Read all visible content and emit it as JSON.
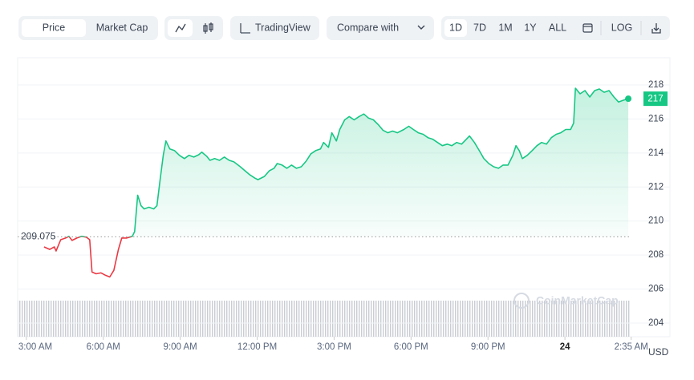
{
  "toolbar": {
    "view_tabs": [
      "Price",
      "Market Cap"
    ],
    "tradingview": "TradingView",
    "compare": "Compare with",
    "ranges": [
      "1D",
      "7D",
      "1M",
      "1Y",
      "ALL"
    ],
    "log": "LOG"
  },
  "chart_data": {
    "type": "line",
    "x": [
      3.69,
      3.91,
      4.09,
      4.16,
      4.34,
      4.53,
      4.66,
      4.78,
      4.97,
      5.16,
      5.34,
      5.47,
      5.56,
      5.72,
      5.91,
      6.09,
      6.25,
      6.41,
      6.59,
      6.72,
      6.91,
      7.13,
      7.22,
      7.34,
      7.47,
      7.59,
      7.78,
      7.97,
      8.09,
      8.22,
      8.34,
      8.44,
      8.59,
      8.78,
      8.97,
      9.16,
      9.34,
      9.53,
      9.72,
      9.84,
      10.03,
      10.16,
      10.34,
      10.53,
      10.72,
      10.91,
      11.09,
      11.34,
      11.53,
      11.72,
      11.91,
      12.03,
      12.28,
      12.47,
      12.66,
      12.78,
      12.97,
      13.16,
      13.34,
      13.53,
      13.72,
      13.91,
      14.09,
      14.28,
      14.47,
      14.59,
      14.78,
      14.91,
      15.09,
      15.22,
      15.41,
      15.59,
      15.78,
      15.97,
      16.16,
      16.34,
      16.53,
      16.72,
      16.91,
      17.09,
      17.28,
      17.47,
      17.72,
      17.91,
      18.09,
      18.28,
      18.47,
      18.66,
      18.84,
      19.03,
      19.22,
      19.41,
      19.59,
      19.78,
      19.97,
      20.16,
      20.28,
      20.47,
      20.66,
      20.84,
      21.03,
      21.22,
      21.41,
      21.59,
      21.78,
      21.97,
      22.09,
      22.22,
      22.34,
      22.53,
      22.72,
      22.91,
      23.09,
      23.28,
      23.47,
      23.66,
      23.84,
      24.03,
      24.22,
      24.34,
      24.41,
      24.59,
      24.78,
      24.97,
      25.16,
      25.34,
      25.53,
      25.72,
      25.91,
      26.09,
      26.28,
      26.47
    ],
    "series": [
      {
        "name": "Price",
        "values": [
          208.48,
          208.33,
          208.48,
          208.24,
          208.9,
          209.0,
          209.1,
          208.86,
          209.0,
          209.1,
          209.05,
          208.9,
          207.0,
          206.9,
          206.95,
          206.81,
          206.71,
          207.1,
          208.33,
          209.0,
          209.0,
          209.1,
          209.38,
          211.52,
          210.9,
          210.71,
          210.81,
          210.71,
          210.9,
          212.48,
          213.9,
          214.71,
          214.24,
          214.14,
          213.86,
          213.67,
          213.86,
          213.76,
          213.9,
          214.05,
          213.81,
          213.57,
          213.67,
          213.57,
          213.76,
          213.57,
          213.48,
          213.19,
          212.95,
          212.71,
          212.52,
          212.43,
          212.62,
          212.95,
          213.1,
          213.38,
          213.29,
          213.1,
          213.29,
          213.1,
          213.19,
          213.52,
          213.95,
          214.14,
          214.24,
          214.62,
          214.33,
          215.19,
          214.71,
          215.38,
          215.95,
          216.14,
          215.95,
          216.14,
          216.29,
          216.05,
          215.95,
          215.67,
          215.33,
          215.19,
          215.29,
          215.19,
          215.38,
          215.57,
          215.38,
          215.19,
          215.1,
          214.9,
          214.81,
          214.62,
          214.43,
          214.52,
          214.43,
          214.62,
          214.52,
          214.81,
          215.0,
          214.62,
          214.14,
          213.67,
          213.38,
          213.19,
          213.1,
          213.29,
          213.29,
          213.86,
          214.43,
          214.14,
          213.67,
          213.86,
          214.14,
          214.43,
          214.62,
          214.52,
          214.9,
          215.1,
          215.19,
          215.38,
          215.38,
          215.76,
          217.81,
          217.48,
          217.67,
          217.29,
          217.67,
          217.76,
          217.57,
          217.67,
          217.29,
          217.0,
          217.1,
          217.19
        ]
      }
    ],
    "up_color": "#16c784",
    "down_color": "#ea3943",
    "baseline": 209.075,
    "last_price_label": "217",
    "xlim": [
      2.66,
      26.53
    ],
    "xticks": [
      {
        "value": 3,
        "label": "3:00 AM"
      },
      {
        "value": 6,
        "label": "6:00 AM"
      },
      {
        "value": 9,
        "label": "9:00 AM"
      },
      {
        "value": 12,
        "label": "12:00 PM"
      },
      {
        "value": 15,
        "label": "3:00 PM"
      },
      {
        "value": 18,
        "label": "6:00 PM"
      },
      {
        "value": 21,
        "label": "9:00 PM"
      },
      {
        "value": 24,
        "label": "24"
      },
      {
        "value": 26.583,
        "label": "2:35 AM"
      }
    ],
    "ylim": [
      203.2,
      219.6
    ],
    "yticks": [
      204,
      206,
      208,
      210,
      212,
      214,
      216,
      218
    ],
    "grid": true,
    "y_unit": "USD",
    "watermark": "CoinMarketCap"
  }
}
